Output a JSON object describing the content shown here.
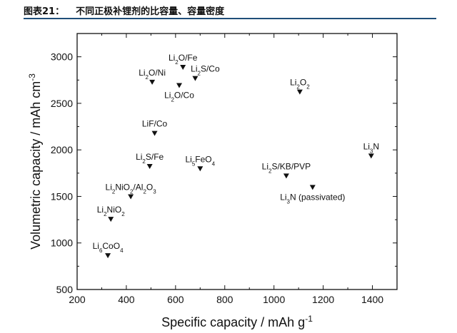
{
  "header": {
    "figure_no": "图表21：",
    "title": "不同正极补锂剂的比容量、容量密度"
  },
  "chart_data": {
    "type": "scatter",
    "title": "不同正极补锂剂的比容量、容量密度",
    "xlabel": "Specific capacity / mAh g",
    "xlabel_sup": "-1",
    "ylabel": "Volumetric capacity / mAh cm",
    "ylabel_sup": "-3",
    "xlim": [
      200,
      1500
    ],
    "ylim": [
      500,
      3250
    ],
    "xticks": [
      200,
      400,
      600,
      800,
      1000,
      1200,
      1400
    ],
    "yticks": [
      500,
      1000,
      1500,
      2000,
      2500,
      3000
    ],
    "grid": false,
    "marker": "down-triangle",
    "points": [
      {
        "label": "Li2O/Fe",
        "x": 630,
        "y": 2890
      },
      {
        "label": "Li2S/Co",
        "x": 680,
        "y": 2770
      },
      {
        "label": "Li2O/Ni",
        "x": 505,
        "y": 2730
      },
      {
        "label": "Li2O/Co",
        "x": 615,
        "y": 2695
      },
      {
        "label": "LiF/Co",
        "x": 515,
        "y": 2180
      },
      {
        "label": "Li2S/Fe",
        "x": 495,
        "y": 1825
      },
      {
        "label": "Li5FeO4",
        "x": 700,
        "y": 1800
      },
      {
        "label": "Li2NiO2/Al2O3",
        "x": 418,
        "y": 1500
      },
      {
        "label": "Li2NiO2",
        "x": 337,
        "y": 1257
      },
      {
        "label": "Li6CoO4",
        "x": 325,
        "y": 867
      },
      {
        "label": "Li2O2",
        "x": 1105,
        "y": 2625
      },
      {
        "label": "Li2S/KB/PVP",
        "x": 1050,
        "y": 1723
      },
      {
        "label": "Li3N (passivated)",
        "x": 1157,
        "y": 1600
      },
      {
        "label": "Li3N",
        "x": 1395,
        "y": 1937
      }
    ]
  }
}
